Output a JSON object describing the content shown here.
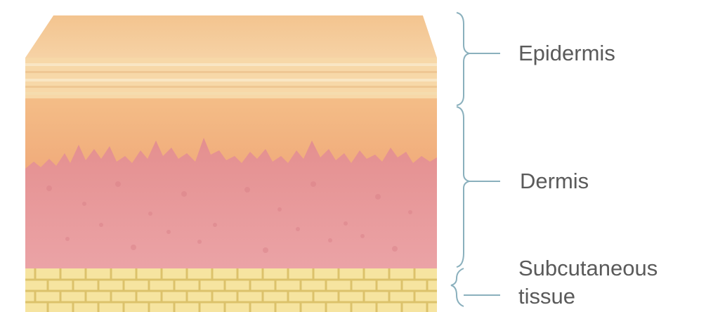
{
  "labels": {
    "epidermis": "Epidermis",
    "dermis": "Dermis",
    "subcutaneous_line1": "Subcutaneous",
    "subcutaneous_line2": "tissue"
  },
  "colors": {
    "epidermis_top": "#f6c995",
    "epidermis_stripes": "#f7dcae",
    "dermis_upper": "#f2b17f",
    "dermis_lower": "#e79c9a",
    "subcutaneous_fat": "#f6e7a2",
    "fat_grid": "#e0c66c",
    "bracket_lines": "#8ab0bd",
    "label_text": "#5a5a5a"
  }
}
